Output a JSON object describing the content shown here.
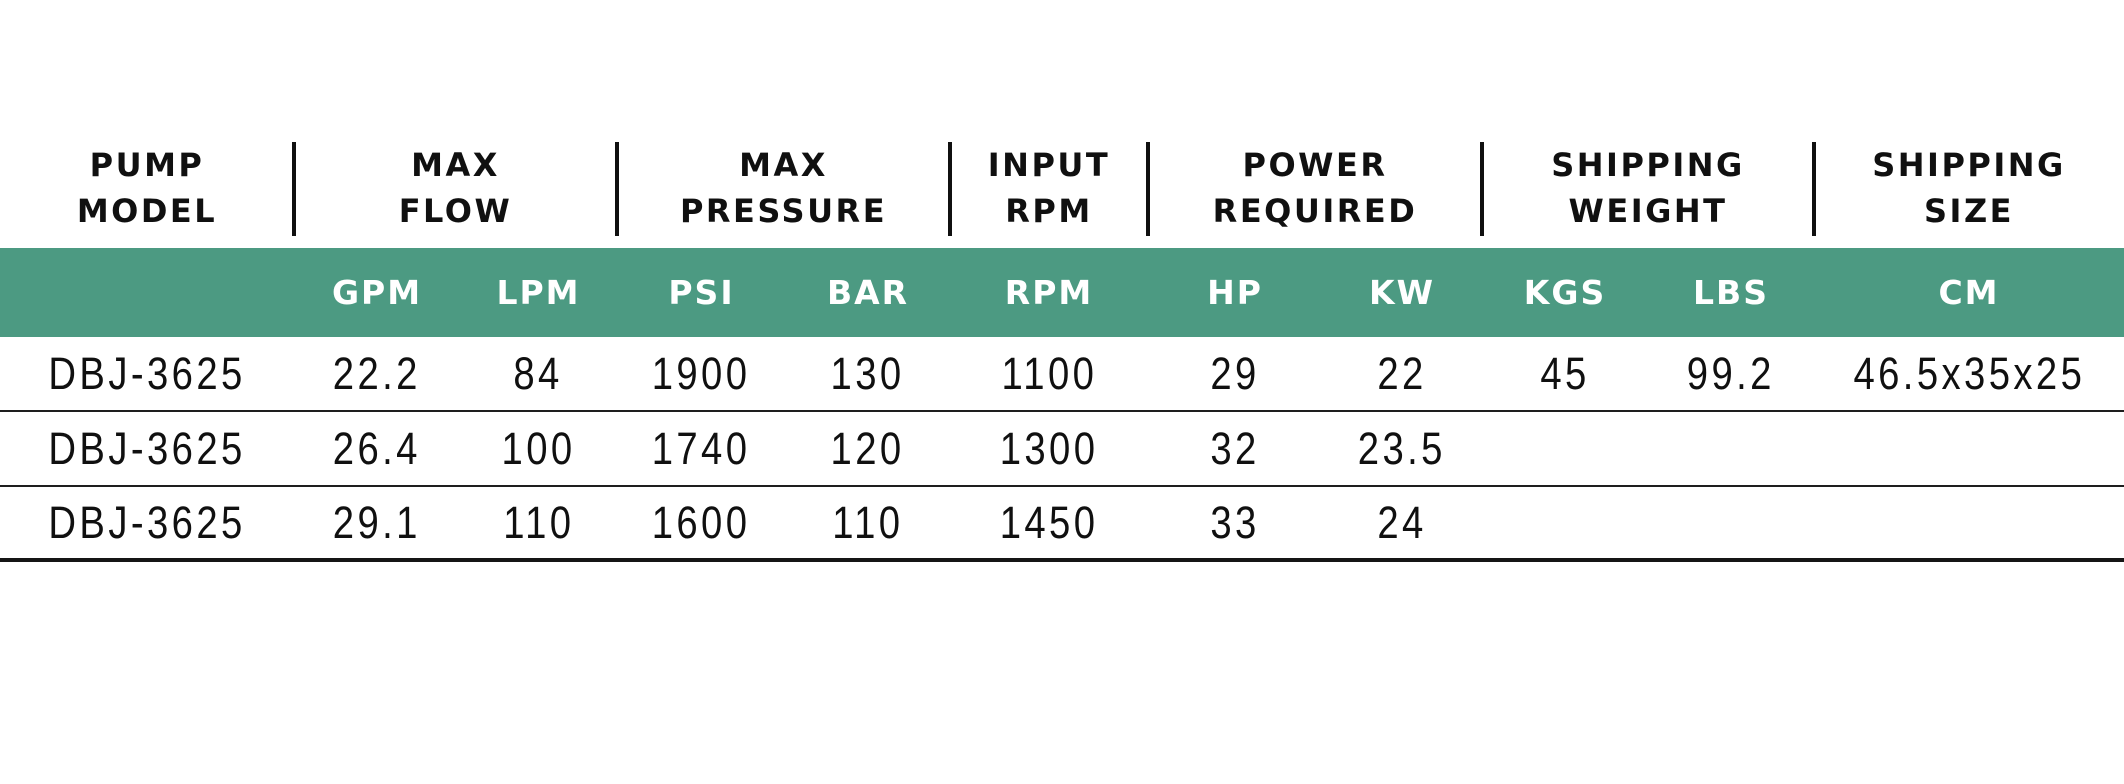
{
  "colors": {
    "accent_green": "#4c9a82",
    "ink": "#101010",
    "unit_text": "#ffffff",
    "row_rule": "#1e1e1e"
  },
  "table": {
    "column_groups": [
      {
        "line1": "PUMP",
        "line2": "MODEL"
      },
      {
        "line1": "MAX",
        "line2": "FLOW"
      },
      {
        "line1": "MAX",
        "line2": "PRESSURE"
      },
      {
        "line1": "INPUT",
        "line2": "RPM"
      },
      {
        "line1": "POWER",
        "line2": "REQUIRED"
      },
      {
        "line1": "SHIPPING",
        "line2": "WEIGHT"
      },
      {
        "line1": "SHIPPING",
        "line2": "SIZE"
      }
    ],
    "units": [
      "",
      "GPM",
      "LPM",
      "PSI",
      "BAR",
      "RPM",
      "HP",
      "KW",
      "KGS",
      "LBS",
      "CM"
    ],
    "rows": [
      {
        "cells": [
          "DBJ-3625",
          "22.2",
          "84",
          "1900",
          "130",
          "1100",
          "29",
          "22",
          "45",
          "99.2",
          "46.5x35x25"
        ]
      },
      {
        "cells": [
          "DBJ-3625",
          "26.4",
          "100",
          "1740",
          "120",
          "1300",
          "32",
          "23.5",
          "",
          "",
          ""
        ]
      },
      {
        "cells": [
          "DBJ-3625",
          "29.1",
          "110",
          "1600",
          "110",
          "1450",
          "33",
          "24",
          "",
          "",
          ""
        ]
      }
    ]
  }
}
